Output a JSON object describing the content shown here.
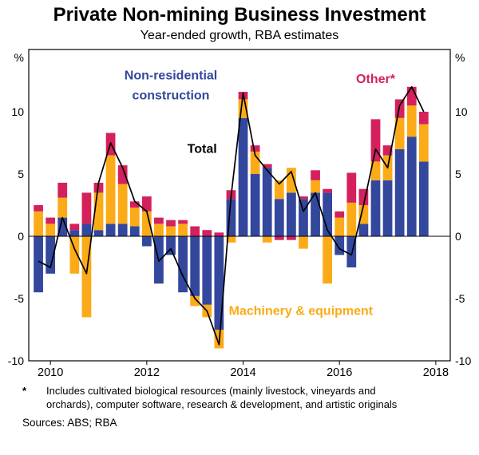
{
  "header": {
    "title": "Private Non-mining Business Investment",
    "subtitle": "Year-ended growth, RBA estimates"
  },
  "footnote": {
    "marker": "*",
    "text": "Includes cultivated biological resources (mainly livestock, vineyards and orchards), computer software, research & development, and artistic originals"
  },
  "sources": "Sources: ABS; RBA",
  "chart_data": {
    "type": "bar",
    "stacked": true,
    "title": "Private Non-mining Business Investment",
    "subtitle": "Year-ended growth, RBA estimates",
    "unit_left": "%",
    "unit_right": "%",
    "ylim": [
      -10,
      15
    ],
    "xlim": [
      2009.55,
      2018.3
    ],
    "yticks": [
      -10,
      -5,
      0,
      5,
      10
    ],
    "xticks": [
      2010,
      2012,
      2014,
      2016,
      2018
    ],
    "grid": false,
    "x": [
      2009.75,
      2010.0,
      2010.25,
      2010.5,
      2010.75,
      2011.0,
      2011.25,
      2011.5,
      2011.75,
      2012.0,
      2012.25,
      2012.5,
      2012.75,
      2013.0,
      2013.25,
      2013.5,
      2013.75,
      2014.0,
      2014.25,
      2014.5,
      2014.75,
      2015.0,
      2015.25,
      2015.5,
      2015.75,
      2016.0,
      2016.25,
      2016.5,
      2016.75,
      2017.0,
      2017.25,
      2017.5,
      2017.75
    ],
    "series": [
      {
        "name": "Non-residential construction",
        "type": "bar",
        "color": "#33479c",
        "values": [
          -4.5,
          -3.0,
          1.5,
          0.5,
          1.0,
          0.5,
          1.0,
          1.0,
          0.8,
          -0.8,
          -3.8,
          -1.5,
          -4.5,
          -4.8,
          -5.5,
          -7.5,
          3.0,
          9.5,
          5.0,
          5.5,
          3.0,
          3.5,
          3.0,
          3.5,
          3.5,
          -1.5,
          -2.5,
          1.0,
          4.5,
          4.5,
          7.0,
          8.0,
          6.0
        ]
      },
      {
        "name": "Machinery & equipment",
        "type": "bar",
        "color": "#fbab18",
        "values": [
          2.0,
          1.0,
          1.6,
          -3.0,
          -6.5,
          3.0,
          5.5,
          3.2,
          1.5,
          2.0,
          1.0,
          0.8,
          1.0,
          -0.8,
          -1.0,
          -1.5,
          -0.5,
          1.5,
          1.8,
          -0.5,
          1.5,
          2.0,
          -1.0,
          1.0,
          -3.8,
          1.5,
          2.7,
          1.5,
          1.5,
          2.0,
          2.5,
          2.5,
          3.0
        ]
      },
      {
        "name": "Other*",
        "type": "bar",
        "color": "#d4215c",
        "values": [
          0.5,
          0.5,
          1.2,
          0.5,
          2.5,
          0.8,
          1.8,
          1.5,
          0.5,
          1.2,
          0.5,
          0.5,
          0.3,
          0.8,
          0.5,
          0.3,
          0.7,
          0.6,
          0.5,
          0.3,
          -0.3,
          -0.3,
          0.2,
          0.8,
          0.3,
          0.5,
          2.4,
          1.3,
          3.4,
          0.8,
          1.5,
          1.5,
          1.0
        ]
      },
      {
        "name": "Total",
        "type": "line",
        "color": "#000000",
        "values": [
          -2.0,
          -2.5,
          1.5,
          -1.0,
          -3.0,
          4.3,
          7.5,
          5.5,
          2.8,
          2.0,
          -2.0,
          -1.0,
          -3.2,
          -5.0,
          -6.0,
          -8.7,
          3.2,
          11.5,
          6.5,
          5.3,
          4.2,
          5.2,
          2.0,
          3.5,
          0.5,
          -1.0,
          -1.5,
          2.5,
          7.0,
          5.5,
          10.5,
          12.0,
          10.0
        ]
      }
    ],
    "annotations": [
      {
        "text": "Non-residential",
        "x": 2012.5,
        "y": 12.6,
        "color": "#33479c",
        "size": 16
      },
      {
        "text": "construction",
        "x": 2012.5,
        "y": 11.0,
        "color": "#33479c",
        "size": 16
      },
      {
        "text": "Total",
        "x": 2013.15,
        "y": 6.7,
        "color": "#000000",
        "size": 16
      },
      {
        "text": "Other*",
        "x": 2016.75,
        "y": 12.3,
        "color": "#d4215c",
        "size": 16
      },
      {
        "text": "Machinery & equipment",
        "x": 2015.2,
        "y": -6.3,
        "color": "#fbab18",
        "size": 16
      }
    ]
  }
}
